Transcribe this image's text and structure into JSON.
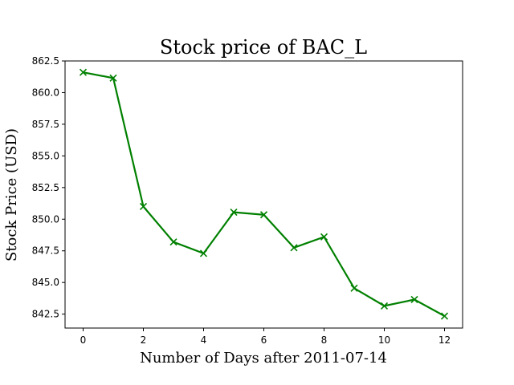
{
  "chart_data": {
    "type": "line",
    "title": "Stock price of BAC_L",
    "xlabel": "Number of Days after 2011-07-14",
    "ylabel": "Stock Price (USD)",
    "x": [
      0,
      1,
      2,
      3,
      4,
      5,
      6,
      7,
      8,
      9,
      10,
      11,
      12
    ],
    "series": [
      {
        "values": [
          861.6,
          861.15,
          851.0,
          848.2,
          847.3,
          850.55,
          850.35,
          847.75,
          848.6,
          844.55,
          843.15,
          843.65,
          842.35
        ],
        "color": "#008000",
        "marker": "x"
      }
    ],
    "xlim": [
      -0.6,
      12.6
    ],
    "ylim": [
      841.4,
      862.5
    ],
    "xticks": [
      0,
      2,
      4,
      6,
      8,
      10,
      12
    ],
    "yticks": [
      842.5,
      845.0,
      847.5,
      850.0,
      852.5,
      855.0,
      857.5,
      860.0,
      862.5
    ],
    "xtick_labels": [
      "0",
      "2",
      "4",
      "6",
      "8",
      "10",
      "12"
    ],
    "ytick_labels": [
      "842.5",
      "845.0",
      "847.5",
      "850.0",
      "852.5",
      "855.0",
      "857.5",
      "860.0",
      "862.5"
    ],
    "grid": false,
    "legend": false
  }
}
